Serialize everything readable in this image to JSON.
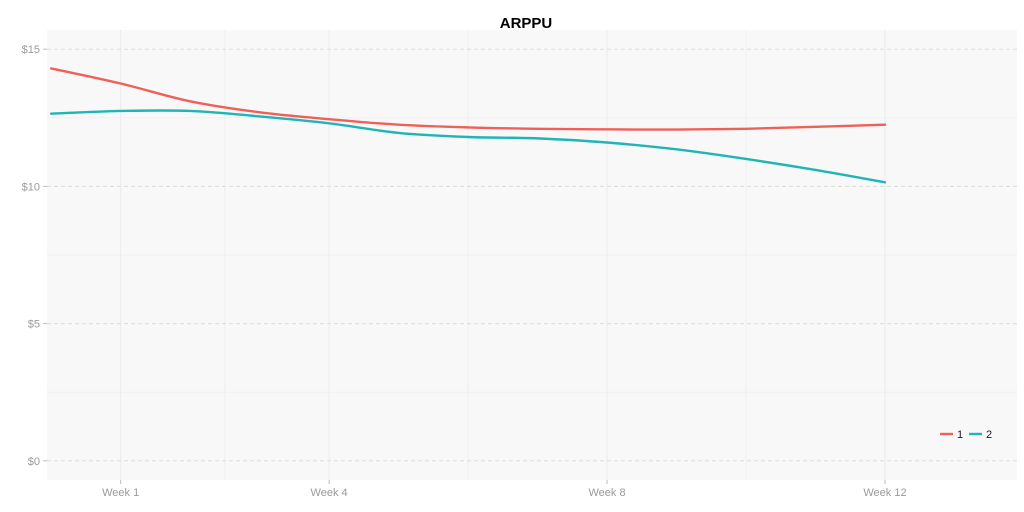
{
  "chart_data": {
    "type": "line",
    "title": "ARPPU",
    "xlabel": "",
    "ylabel": "",
    "categories": [
      "Week 1",
      "Week 4",
      "Week 8",
      "Week 12"
    ],
    "category_weeks": [
      1,
      4,
      8,
      12
    ],
    "xlim": [
      -0.06,
      13.9
    ],
    "ylim": [
      -0.7,
      15.7
    ],
    "y_ticks": [
      0,
      5,
      10,
      15
    ],
    "y_tick_labels": [
      "$0",
      "$5",
      "$10",
      "$15"
    ],
    "y_tick_prefix": "$",
    "grid": true,
    "legend_position": "bottom-right",
    "series": [
      {
        "name": "1",
        "color": "#f0605a",
        "x": [
          0,
          1,
          2,
          3,
          4,
          5,
          6,
          7,
          8,
          9,
          10,
          11,
          12
        ],
        "values": [
          14.3,
          13.75,
          13.1,
          12.7,
          12.45,
          12.25,
          12.15,
          12.1,
          12.08,
          12.07,
          12.1,
          12.17,
          12.25
        ]
      },
      {
        "name": "2",
        "color": "#1fb5b7",
        "x": [
          0,
          1,
          2,
          3,
          4,
          5,
          6,
          7,
          8,
          9,
          10,
          11,
          12
        ],
        "values": [
          12.65,
          12.75,
          12.75,
          12.55,
          12.3,
          11.95,
          11.8,
          11.75,
          11.6,
          11.35,
          11.0,
          10.6,
          10.15
        ]
      }
    ]
  }
}
